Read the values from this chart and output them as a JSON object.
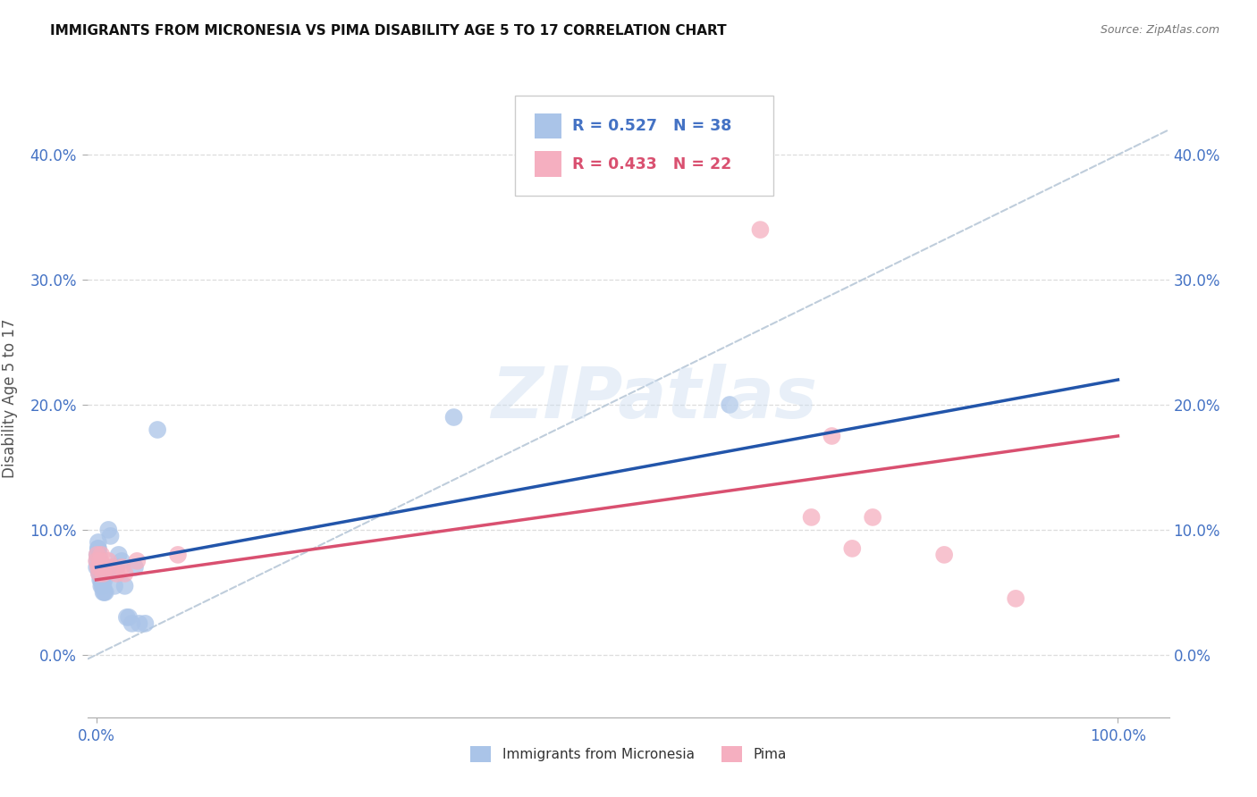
{
  "title": "IMMIGRANTS FROM MICRONESIA VS PIMA DISABILITY AGE 5 TO 17 CORRELATION CHART",
  "source": "Source: ZipAtlas.com",
  "ylabel": "Disability Age 5 to 17",
  "legend_label1": "Immigrants from Micronesia",
  "legend_label2": "Pima",
  "R1": 0.527,
  "N1": 38,
  "R2": 0.433,
  "N2": 22,
  "blue_color": "#aac4e8",
  "pink_color": "#f5afc0",
  "blue_line_color": "#2255aa",
  "pink_line_color": "#d95070",
  "dashed_line_color": "#b8c8d8",
  "xlim": [
    -0.008,
    1.05
  ],
  "ylim": [
    -0.05,
    0.46
  ],
  "blue_x": [
    0.0005,
    0.001,
    0.001,
    0.002,
    0.002,
    0.002,
    0.003,
    0.003,
    0.003,
    0.004,
    0.004,
    0.005,
    0.005,
    0.006,
    0.006,
    0.007,
    0.007,
    0.008,
    0.008,
    0.009,
    0.01,
    0.012,
    0.014,
    0.016,
    0.018,
    0.02,
    0.022,
    0.025,
    0.028,
    0.03,
    0.032,
    0.035,
    0.038,
    0.042,
    0.048,
    0.06,
    0.35,
    0.62
  ],
  "blue_y": [
    0.07,
    0.075,
    0.08,
    0.085,
    0.085,
    0.09,
    0.08,
    0.07,
    0.065,
    0.065,
    0.06,
    0.06,
    0.055,
    0.065,
    0.055,
    0.055,
    0.05,
    0.06,
    0.05,
    0.05,
    0.065,
    0.1,
    0.095,
    0.07,
    0.055,
    0.07,
    0.08,
    0.075,
    0.055,
    0.03,
    0.03,
    0.025,
    0.07,
    0.025,
    0.025,
    0.18,
    0.19,
    0.2
  ],
  "pink_x": [
    0.0005,
    0.001,
    0.002,
    0.003,
    0.004,
    0.005,
    0.007,
    0.009,
    0.012,
    0.015,
    0.02,
    0.025,
    0.028,
    0.04,
    0.08,
    0.65,
    0.7,
    0.72,
    0.74,
    0.76,
    0.83,
    0.9
  ],
  "pink_y": [
    0.075,
    0.08,
    0.07,
    0.065,
    0.075,
    0.08,
    0.065,
    0.07,
    0.075,
    0.07,
    0.065,
    0.07,
    0.065,
    0.075,
    0.08,
    0.34,
    0.11,
    0.175,
    0.085,
    0.11,
    0.08,
    0.045
  ],
  "blue_reg": [
    0.0,
    1.0,
    0.07,
    0.22
  ],
  "pink_reg": [
    0.0,
    1.0,
    0.06,
    0.175
  ],
  "xtick_positions": [
    0.0,
    1.0
  ],
  "xtick_labels": [
    "0.0%",
    "100.0%"
  ],
  "yticks": [
    0.0,
    0.1,
    0.2,
    0.3,
    0.4
  ],
  "ytick_labels": [
    "0.0%",
    "10.0%",
    "20.0%",
    "30.0%",
    "40.0%"
  ],
  "watermark": "ZIPatlas",
  "tick_color": "#4472c4",
  "axis_label_color": "#555555",
  "grid_color": "#dddddd"
}
